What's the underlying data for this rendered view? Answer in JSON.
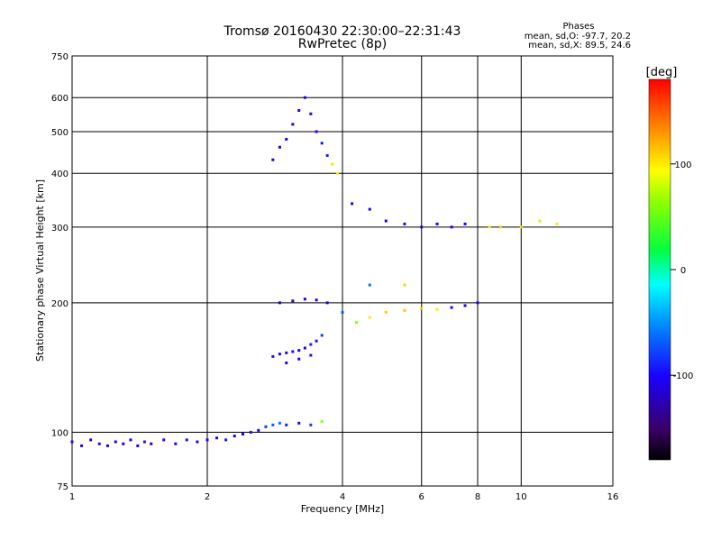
{
  "chart_data": {
    "type": "scatter",
    "title": "Tromsø 20160430 22:30:00–22:31:43",
    "subtitle": "RwPretec (8p)",
    "stats": {
      "heading": "Phases",
      "line1": "mean, sd,O: -97.7, 20.2",
      "line2": "mean, sd,X:  89.5, 24.6"
    },
    "xlabel": "Frequency [MHz]",
    "ylabel": "Stationary phase Virtual Height [km]",
    "x_scale": "log",
    "y_scale": "log",
    "xlim": [
      1,
      16
    ],
    "ylim": [
      75,
      750
    ],
    "x_ticks": [
      1,
      2,
      4,
      6,
      8,
      10,
      16
    ],
    "x_tick_labels": [
      "1",
      "2",
      "4",
      "6",
      "8",
      "10",
      "16"
    ],
    "y_ticks": [
      75,
      100,
      200,
      300,
      400,
      500,
      600,
      750
    ],
    "y_tick_labels": [
      "75",
      "100",
      "200",
      "300",
      "400",
      "500",
      "600",
      "750"
    ],
    "grid": true,
    "colorbar": {
      "title": "[deg]",
      "min": -180,
      "max": 180,
      "ticks": [
        100,
        0,
        -100
      ],
      "tick_labels": [
        "100",
        "0",
        "-100"
      ]
    },
    "series": [
      {
        "points": [
          [
            1.0,
            95,
            -105
          ],
          [
            1.05,
            93,
            -100
          ],
          [
            1.1,
            96,
            -110
          ],
          [
            1.15,
            94,
            -95
          ],
          [
            1.2,
            93,
            -105
          ],
          [
            1.25,
            95,
            -100
          ],
          [
            1.3,
            94,
            -110
          ],
          [
            1.35,
            96,
            -100
          ],
          [
            1.4,
            93,
            -105
          ],
          [
            1.45,
            95,
            -95
          ],
          [
            1.5,
            94,
            -110
          ],
          [
            1.6,
            96,
            -100
          ],
          [
            1.7,
            94,
            -105
          ],
          [
            1.8,
            96,
            -95
          ],
          [
            1.9,
            95,
            -110
          ],
          [
            2.0,
            96,
            -100
          ],
          [
            2.1,
            97,
            -105
          ],
          [
            2.2,
            96,
            -95
          ],
          [
            2.3,
            98,
            -110
          ],
          [
            2.4,
            99,
            -100
          ],
          [
            2.5,
            100,
            -95
          ],
          [
            2.6,
            101,
            -105
          ],
          [
            2.7,
            103,
            -80
          ],
          [
            2.8,
            104,
            -70
          ],
          [
            2.9,
            105,
            -60
          ],
          [
            3.0,
            104,
            -90
          ],
          [
            3.2,
            105,
            -100
          ],
          [
            3.4,
            104,
            -80
          ],
          [
            3.6,
            106,
            60
          ]
        ]
      },
      {
        "points": [
          [
            2.8,
            150,
            -95
          ],
          [
            2.9,
            152,
            -100
          ],
          [
            3.0,
            153,
            -105
          ],
          [
            3.1,
            154,
            -95
          ],
          [
            3.2,
            155,
            -100
          ],
          [
            3.3,
            157,
            -105
          ],
          [
            3.4,
            160,
            -90
          ],
          [
            3.5,
            163,
            -95
          ],
          [
            3.6,
            168,
            -80
          ],
          [
            3.0,
            145,
            -110
          ],
          [
            3.2,
            148,
            -100
          ],
          [
            3.4,
            151,
            -95
          ]
        ]
      },
      {
        "points": [
          [
            2.9,
            200,
            -120
          ],
          [
            3.1,
            202,
            -115
          ],
          [
            3.3,
            204,
            -110
          ],
          [
            3.5,
            203,
            -120
          ],
          [
            3.7,
            200,
            -115
          ]
        ]
      },
      {
        "points": [
          [
            2.8,
            430,
            -110
          ],
          [
            2.9,
            460,
            -115
          ],
          [
            3.0,
            480,
            -105
          ],
          [
            3.1,
            520,
            -110
          ],
          [
            3.2,
            560,
            -100
          ],
          [
            3.3,
            600,
            -110
          ],
          [
            3.4,
            550,
            -105
          ],
          [
            3.5,
            500,
            -100
          ],
          [
            3.6,
            470,
            -95
          ],
          [
            3.7,
            440,
            -90
          ],
          [
            3.8,
            420,
            80
          ],
          [
            3.9,
            400,
            100
          ]
        ]
      },
      {
        "points": [
          [
            4.0,
            190,
            -70
          ],
          [
            4.3,
            180,
            60
          ],
          [
            4.6,
            185,
            100
          ],
          [
            5.0,
            190,
            110
          ],
          [
            5.5,
            192,
            115
          ],
          [
            6.0,
            194,
            110
          ],
          [
            6.5,
            193,
            100
          ],
          [
            7.0,
            195,
            -105
          ],
          [
            7.5,
            197,
            -110
          ],
          [
            8.0,
            200,
            -100
          ],
          [
            4.6,
            220,
            -60
          ],
          [
            5.5,
            220,
            110
          ]
        ]
      },
      {
        "points": [
          [
            4.2,
            340,
            -100
          ],
          [
            4.6,
            330,
            -105
          ],
          [
            5.0,
            310,
            -110
          ],
          [
            5.5,
            305,
            -100
          ],
          [
            6.0,
            300,
            -110
          ],
          [
            6.5,
            305,
            -105
          ],
          [
            7.0,
            300,
            -110
          ],
          [
            7.5,
            305,
            -100
          ],
          [
            8.5,
            300,
            100
          ],
          [
            9.0,
            300,
            110
          ],
          [
            10.0,
            300,
            105
          ],
          [
            11.0,
            310,
            80
          ],
          [
            12.0,
            305,
            100
          ]
        ]
      }
    ]
  }
}
